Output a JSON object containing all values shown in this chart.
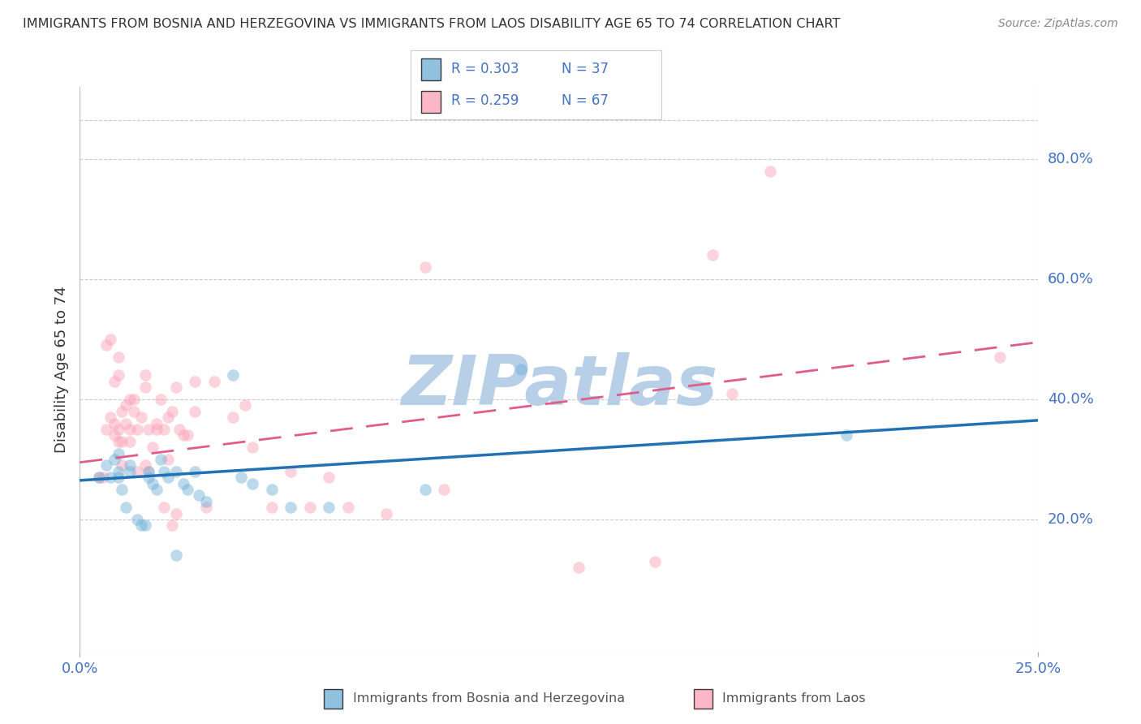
{
  "title": "IMMIGRANTS FROM BOSNIA AND HERZEGOVINA VS IMMIGRANTS FROM LAOS DISABILITY AGE 65 TO 74 CORRELATION CHART",
  "source": "Source: ZipAtlas.com",
  "ylabel": "Disability Age 65 to 74",
  "right_yticks": [
    "80.0%",
    "60.0%",
    "40.0%",
    "20.0%"
  ],
  "right_ytick_vals": [
    0.8,
    0.6,
    0.4,
    0.2
  ],
  "xlim": [
    0.0,
    0.25
  ],
  "ylim": [
    -0.02,
    0.92
  ],
  "watermark": "ZIPatlas",
  "legend": {
    "bosnia": {
      "R": "0.303",
      "N": "37",
      "color": "#6baed6"
    },
    "laos": {
      "R": "0.259",
      "N": "67",
      "color": "#fa9fb5"
    }
  },
  "bosnia_points": [
    [
      0.005,
      0.27
    ],
    [
      0.007,
      0.29
    ],
    [
      0.008,
      0.27
    ],
    [
      0.009,
      0.3
    ],
    [
      0.01,
      0.27
    ],
    [
      0.01,
      0.28
    ],
    [
      0.01,
      0.31
    ],
    [
      0.011,
      0.25
    ],
    [
      0.012,
      0.22
    ],
    [
      0.013,
      0.29
    ],
    [
      0.013,
      0.28
    ],
    [
      0.015,
      0.2
    ],
    [
      0.016,
      0.19
    ],
    [
      0.017,
      0.19
    ],
    [
      0.018,
      0.28
    ],
    [
      0.018,
      0.27
    ],
    [
      0.019,
      0.26
    ],
    [
      0.02,
      0.25
    ],
    [
      0.021,
      0.3
    ],
    [
      0.022,
      0.28
    ],
    [
      0.023,
      0.27
    ],
    [
      0.025,
      0.14
    ],
    [
      0.025,
      0.28
    ],
    [
      0.027,
      0.26
    ],
    [
      0.028,
      0.25
    ],
    [
      0.03,
      0.28
    ],
    [
      0.031,
      0.24
    ],
    [
      0.033,
      0.23
    ],
    [
      0.04,
      0.44
    ],
    [
      0.042,
      0.27
    ],
    [
      0.045,
      0.26
    ],
    [
      0.05,
      0.25
    ],
    [
      0.055,
      0.22
    ],
    [
      0.065,
      0.22
    ],
    [
      0.09,
      0.25
    ],
    [
      0.2,
      0.34
    ],
    [
      0.115,
      0.45
    ]
  ],
  "laos_points": [
    [
      0.005,
      0.27
    ],
    [
      0.006,
      0.27
    ],
    [
      0.007,
      0.35
    ],
    [
      0.007,
      0.49
    ],
    [
      0.008,
      0.5
    ],
    [
      0.008,
      0.37
    ],
    [
      0.009,
      0.36
    ],
    [
      0.009,
      0.43
    ],
    [
      0.009,
      0.34
    ],
    [
      0.01,
      0.33
    ],
    [
      0.01,
      0.35
    ],
    [
      0.01,
      0.47
    ],
    [
      0.01,
      0.44
    ],
    [
      0.011,
      0.29
    ],
    [
      0.011,
      0.33
    ],
    [
      0.011,
      0.38
    ],
    [
      0.012,
      0.36
    ],
    [
      0.012,
      0.39
    ],
    [
      0.013,
      0.4
    ],
    [
      0.013,
      0.35
    ],
    [
      0.013,
      0.33
    ],
    [
      0.014,
      0.4
    ],
    [
      0.014,
      0.38
    ],
    [
      0.015,
      0.28
    ],
    [
      0.015,
      0.35
    ],
    [
      0.016,
      0.37
    ],
    [
      0.017,
      0.44
    ],
    [
      0.017,
      0.42
    ],
    [
      0.017,
      0.29
    ],
    [
      0.018,
      0.35
    ],
    [
      0.018,
      0.28
    ],
    [
      0.019,
      0.32
    ],
    [
      0.02,
      0.36
    ],
    [
      0.02,
      0.35
    ],
    [
      0.021,
      0.4
    ],
    [
      0.022,
      0.35
    ],
    [
      0.022,
      0.22
    ],
    [
      0.023,
      0.37
    ],
    [
      0.023,
      0.3
    ],
    [
      0.024,
      0.38
    ],
    [
      0.024,
      0.19
    ],
    [
      0.025,
      0.42
    ],
    [
      0.025,
      0.21
    ],
    [
      0.026,
      0.35
    ],
    [
      0.027,
      0.34
    ],
    [
      0.028,
      0.34
    ],
    [
      0.03,
      0.38
    ],
    [
      0.03,
      0.43
    ],
    [
      0.033,
      0.22
    ],
    [
      0.035,
      0.43
    ],
    [
      0.04,
      0.37
    ],
    [
      0.043,
      0.39
    ],
    [
      0.045,
      0.32
    ],
    [
      0.05,
      0.22
    ],
    [
      0.055,
      0.28
    ],
    [
      0.06,
      0.22
    ],
    [
      0.065,
      0.27
    ],
    [
      0.07,
      0.22
    ],
    [
      0.08,
      0.21
    ],
    [
      0.09,
      0.62
    ],
    [
      0.095,
      0.25
    ],
    [
      0.13,
      0.12
    ],
    [
      0.15,
      0.13
    ],
    [
      0.165,
      0.64
    ],
    [
      0.17,
      0.41
    ],
    [
      0.24,
      0.47
    ],
    [
      0.18,
      0.78
    ]
  ],
  "bosnia_line": {
    "x0": 0.0,
    "y0": 0.265,
    "x1": 0.25,
    "y1": 0.365
  },
  "laos_line": {
    "x0": 0.0,
    "y0": 0.295,
    "x1": 0.25,
    "y1": 0.495
  },
  "bosnia_line_color": "#2171b5",
  "laos_line_color": "#e05c8a",
  "bg_color": "#ffffff",
  "grid_color": "#cccccc",
  "title_color": "#333333",
  "axis_label_color": "#4472c4",
  "watermark_color": "#b8cfe8",
  "dot_size": 110,
  "dot_alpha": 0.45
}
